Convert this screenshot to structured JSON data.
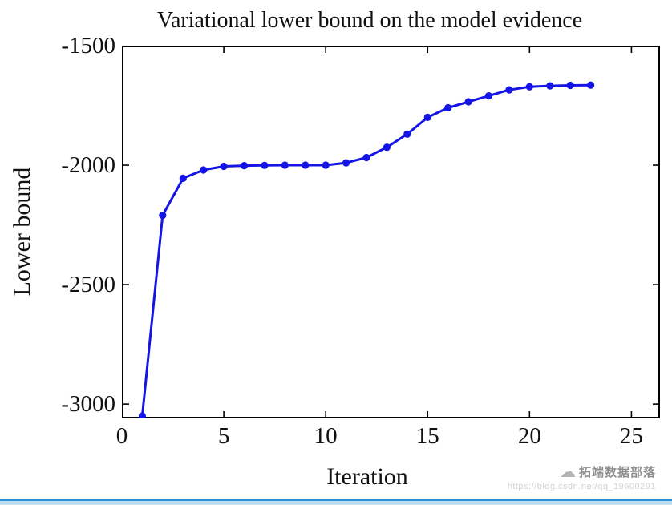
{
  "chart_data": {
    "type": "line",
    "title": "Variational lower bound on the model evidence",
    "xlabel": "Iteration",
    "ylabel": "Lower bound",
    "x": [
      1,
      2,
      3,
      4,
      5,
      6,
      7,
      8,
      9,
      10,
      11,
      12,
      13,
      14,
      15,
      16,
      17,
      18,
      19,
      20,
      21,
      22,
      23
    ],
    "y": [
      -3050,
      -2210,
      -2055,
      -2020,
      -2005,
      -2002,
      -2001,
      -2000,
      -2000,
      -2000,
      -1990,
      -1968,
      -1925,
      -1870,
      -1800,
      -1760,
      -1735,
      -1710,
      -1685,
      -1672,
      -1668,
      -1666,
      -1665
    ],
    "xlim": [
      0,
      26.4
    ],
    "ylim": [
      -3060,
      -1500
    ],
    "xticks": [
      0,
      5,
      10,
      15,
      20,
      25
    ],
    "yticks": [
      -3000,
      -2500,
      -2000,
      -1500
    ],
    "grid": false,
    "line_color": "#1414e6",
    "marker": "circle",
    "axis_color": "#000000"
  },
  "watermark": {
    "brand": "拓端数据部落",
    "url": "https://blog.csdn.net/qq_19600291",
    "icon": "cloud"
  },
  "footer": {
    "bar_color": "#bfe0f3",
    "bar_border_color": "#2a8fd6"
  }
}
